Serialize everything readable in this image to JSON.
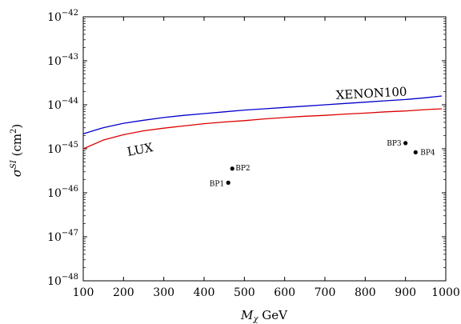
{
  "chart_data": {
    "type": "scatter",
    "title": "",
    "xlabel": {
      "base": "M",
      "sub": "χ",
      "unit": " GeV"
    },
    "ylabel": {
      "base": "σ",
      "sup": "SI",
      "unit_open": " (cm",
      "unit_sup": "2",
      "unit_close": ")"
    },
    "xlim": [
      100,
      1000
    ],
    "ylim": [
      1e-48,
      1e-42
    ],
    "yscale": "log",
    "grid": false,
    "x_ticks": [
      100,
      200,
      300,
      400,
      500,
      600,
      700,
      800,
      900,
      1000
    ],
    "y_ticks": [
      {
        "base": "10",
        "exp": "−48",
        "value": -48
      },
      {
        "base": "10",
        "exp": "−47",
        "value": -47
      },
      {
        "base": "10",
        "exp": "−46",
        "value": -46
      },
      {
        "base": "10",
        "exp": "−45",
        "value": -45
      },
      {
        "base": "10",
        "exp": "−44",
        "value": -44
      },
      {
        "base": "10",
        "exp": "−43",
        "value": -43
      },
      {
        "base": "10",
        "exp": "−42",
        "value": -42
      }
    ],
    "curves": [
      {
        "name": "XENON100",
        "color": "#0000cc",
        "x": [
          100,
          150,
          200,
          250,
          300,
          350,
          400,
          450,
          500,
          550,
          600,
          650,
          700,
          750,
          800,
          850,
          900,
          950,
          990
        ],
        "log10_y": [
          -44.66,
          -44.52,
          -44.42,
          -44.35,
          -44.29,
          -44.24,
          -44.2,
          -44.16,
          -44.12,
          -44.09,
          -44.06,
          -44.03,
          -44.0,
          -43.97,
          -43.94,
          -43.91,
          -43.88,
          -43.84,
          -43.8
        ]
      },
      {
        "name": "LUX",
        "color": "#dd0000",
        "x": [
          100,
          150,
          200,
          250,
          300,
          350,
          400,
          450,
          500,
          550,
          600,
          650,
          700,
          750,
          800,
          850,
          900,
          950,
          990
        ],
        "log10_y": [
          -45.0,
          -44.8,
          -44.68,
          -44.59,
          -44.53,
          -44.48,
          -44.43,
          -44.39,
          -44.36,
          -44.32,
          -44.29,
          -44.26,
          -44.24,
          -44.21,
          -44.19,
          -44.16,
          -44.14,
          -44.11,
          -44.09
        ]
      }
    ],
    "points": [
      {
        "name": "BP1",
        "x": 460,
        "log10_y": -45.77
      },
      {
        "name": "BP2",
        "x": 470,
        "log10_y": -45.45
      },
      {
        "name": "BP3",
        "x": 900,
        "log10_y": -44.87
      },
      {
        "name": "BP4",
        "x": 925,
        "log10_y": -45.08
      }
    ]
  }
}
